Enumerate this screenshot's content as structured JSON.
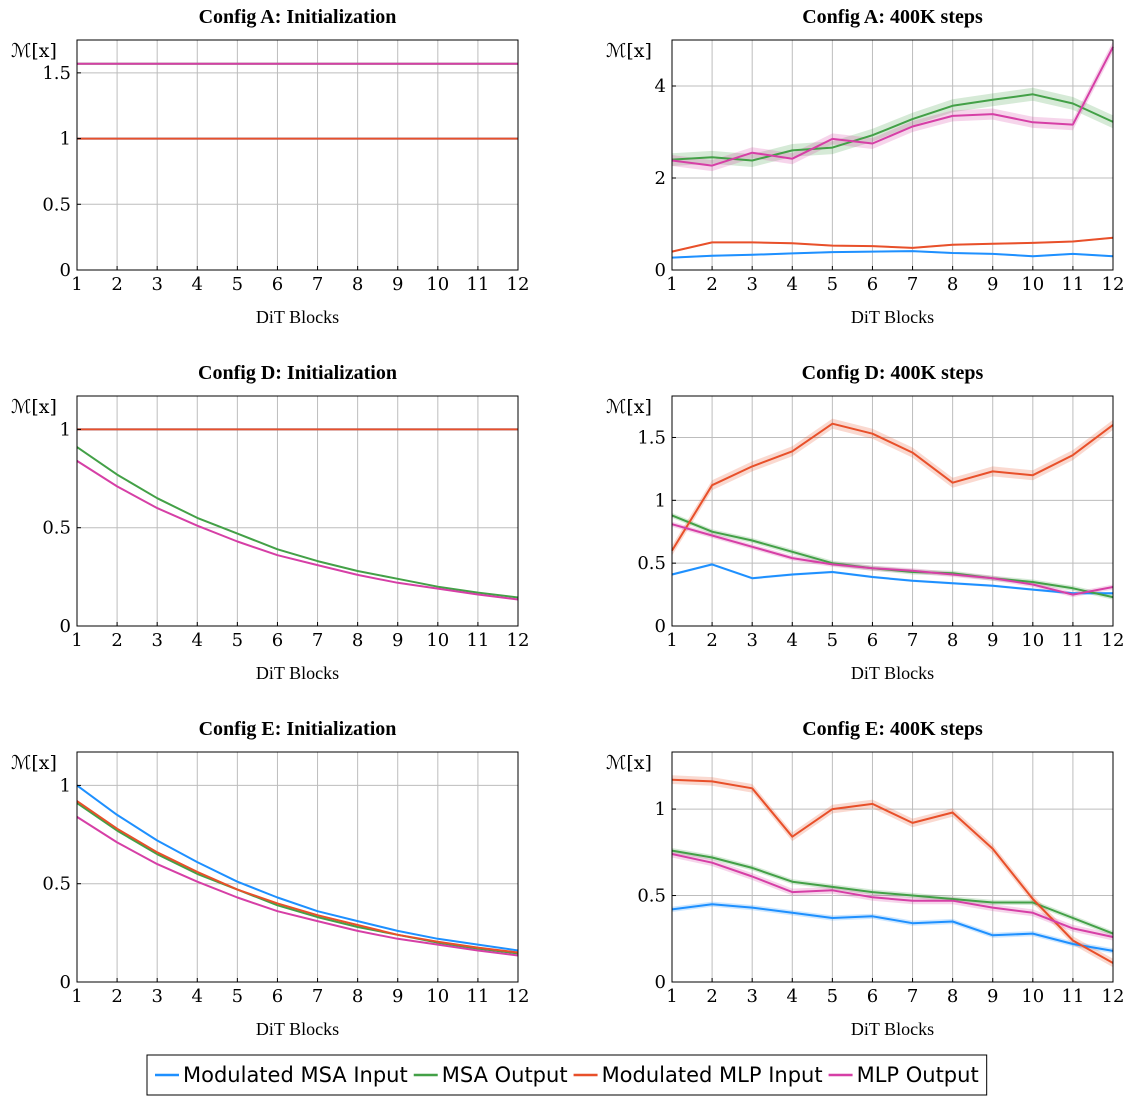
{
  "series_styles": [
    {
      "key": "msa_in",
      "color": "#1e90ff"
    },
    {
      "key": "msa_out",
      "color": "#43a047"
    },
    {
      "key": "mlp_in",
      "color": "#e8502a"
    },
    {
      "key": "mlp_out",
      "color": "#d63fa6"
    }
  ],
  "legend": [
    {
      "key": "msa_in",
      "label": "Modulated MSA Input"
    },
    {
      "key": "msa_out",
      "label": "MSA Output"
    },
    {
      "key": "mlp_in",
      "label": "Modulated MLP Input"
    },
    {
      "key": "mlp_out",
      "label": "MLP Output"
    }
  ],
  "chart_data": [
    {
      "type": "line",
      "title": "Config A: Initialization",
      "xlabel": "DiT Blocks",
      "ylabel": "ℳ[x]",
      "x": [
        1,
        2,
        3,
        4,
        5,
        6,
        7,
        8,
        9,
        10,
        11,
        12
      ],
      "ylim": [
        0,
        1.75
      ],
      "yticks": [
        0,
        0.5,
        1,
        1.5
      ],
      "yticklabels": [
        "0",
        "0.5",
        "1",
        "1.5"
      ],
      "series": [
        {
          "key": "msa_in",
          "values": [
            1,
            1,
            1,
            1,
            1,
            1,
            1,
            1,
            1,
            1,
            1,
            1
          ]
        },
        {
          "key": "msa_out",
          "values": [
            1.57,
            1.57,
            1.57,
            1.57,
            1.57,
            1.57,
            1.57,
            1.57,
            1.57,
            1.57,
            1.57,
            1.57
          ]
        },
        {
          "key": "mlp_in",
          "values": [
            1,
            1,
            1,
            1,
            1,
            1,
            1,
            1,
            1,
            1,
            1,
            1
          ]
        },
        {
          "key": "mlp_out",
          "values": [
            1.57,
            1.57,
            1.57,
            1.57,
            1.57,
            1.57,
            1.57,
            1.57,
            1.57,
            1.57,
            1.57,
            1.57
          ]
        }
      ]
    },
    {
      "type": "line",
      "title": "Config A: 400K steps",
      "xlabel": "DiT Blocks",
      "ylabel": "ℳ[x]",
      "x": [
        1,
        2,
        3,
        4,
        5,
        6,
        7,
        8,
        9,
        10,
        11,
        12
      ],
      "ylim": [
        0,
        5
      ],
      "yticks": [
        0,
        2,
        4
      ],
      "yticklabels": [
        "0",
        "2",
        "4"
      ],
      "series": [
        {
          "key": "msa_in",
          "values": [
            0.27,
            0.31,
            0.33,
            0.36,
            0.39,
            0.4,
            0.41,
            0.37,
            0.35,
            0.3,
            0.35,
            0.3
          ],
          "band": 0.02
        },
        {
          "key": "msa_out",
          "values": [
            2.4,
            2.45,
            2.38,
            2.6,
            2.66,
            2.93,
            3.28,
            3.57,
            3.7,
            3.82,
            3.62,
            3.22
          ],
          "band": 0.14
        },
        {
          "key": "mlp_in",
          "values": [
            0.4,
            0.6,
            0.6,
            0.58,
            0.53,
            0.52,
            0.48,
            0.55,
            0.57,
            0.59,
            0.62,
            0.7
          ],
          "band": 0.02
        },
        {
          "key": "mlp_out",
          "values": [
            2.38,
            2.27,
            2.55,
            2.42,
            2.85,
            2.75,
            3.12,
            3.35,
            3.39,
            3.21,
            3.16,
            4.85
          ],
          "band": 0.12
        }
      ]
    },
    {
      "type": "line",
      "title": "Config D: Initialization",
      "xlabel": "DiT Blocks",
      "ylabel": "ℳ[x]",
      "x": [
        1,
        2,
        3,
        4,
        5,
        6,
        7,
        8,
        9,
        10,
        11,
        12
      ],
      "ylim": [
        0,
        1.17
      ],
      "yticks": [
        0,
        0.5,
        1
      ],
      "yticklabels": [
        "0",
        "0.5",
        "1"
      ],
      "series": [
        {
          "key": "msa_in",
          "values": [
            1,
            1,
            1,
            1,
            1,
            1,
            1,
            1,
            1,
            1,
            1,
            1
          ]
        },
        {
          "key": "msa_out",
          "values": [
            0.91,
            0.77,
            0.65,
            0.55,
            0.47,
            0.39,
            0.33,
            0.28,
            0.24,
            0.2,
            0.17,
            0.145
          ]
        },
        {
          "key": "mlp_in",
          "values": [
            1,
            1,
            1,
            1,
            1,
            1,
            1,
            1,
            1,
            1,
            1,
            1
          ]
        },
        {
          "key": "mlp_out",
          "values": [
            0.84,
            0.71,
            0.6,
            0.51,
            0.43,
            0.36,
            0.31,
            0.26,
            0.22,
            0.19,
            0.16,
            0.135
          ]
        }
      ]
    },
    {
      "type": "line",
      "title": "Config D: 400K steps",
      "xlabel": "DiT Blocks",
      "ylabel": "ℳ[x]",
      "x": [
        1,
        2,
        3,
        4,
        5,
        6,
        7,
        8,
        9,
        10,
        11,
        12
      ],
      "ylim": [
        0,
        1.83
      ],
      "yticks": [
        0,
        0.5,
        1,
        1.5
      ],
      "yticklabels": [
        "0",
        "0.5",
        "1",
        "1.5"
      ],
      "series": [
        {
          "key": "msa_in",
          "values": [
            0.41,
            0.49,
            0.38,
            0.41,
            0.43,
            0.39,
            0.36,
            0.34,
            0.32,
            0.29,
            0.26,
            0.26
          ],
          "band": 0.01
        },
        {
          "key": "msa_out",
          "values": [
            0.88,
            0.75,
            0.68,
            0.59,
            0.5,
            0.46,
            0.43,
            0.42,
            0.38,
            0.35,
            0.3,
            0.23
          ],
          "band": 0.02
        },
        {
          "key": "mlp_in",
          "values": [
            0.6,
            1.12,
            1.27,
            1.39,
            1.61,
            1.53,
            1.38,
            1.14,
            1.23,
            1.2,
            1.36,
            1.6
          ],
          "band": 0.04
        },
        {
          "key": "mlp_out",
          "values": [
            0.81,
            0.72,
            0.63,
            0.54,
            0.49,
            0.46,
            0.44,
            0.41,
            0.38,
            0.33,
            0.25,
            0.31
          ],
          "band": 0.02
        }
      ]
    },
    {
      "type": "line",
      "title": "Config E: Initialization",
      "xlabel": "DiT Blocks",
      "ylabel": "ℳ[x]",
      "x": [
        1,
        2,
        3,
        4,
        5,
        6,
        7,
        8,
        9,
        10,
        11,
        12
      ],
      "ylim": [
        0,
        1.17
      ],
      "yticks": [
        0,
        0.5,
        1
      ],
      "yticklabels": [
        "0",
        "0.5",
        "1"
      ],
      "series": [
        {
          "key": "msa_in",
          "values": [
            1.0,
            0.85,
            0.72,
            0.61,
            0.51,
            0.43,
            0.36,
            0.31,
            0.26,
            0.22,
            0.19,
            0.16
          ]
        },
        {
          "key": "msa_out",
          "values": [
            0.91,
            0.77,
            0.65,
            0.55,
            0.47,
            0.39,
            0.33,
            0.28,
            0.24,
            0.2,
            0.17,
            0.145
          ]
        },
        {
          "key": "mlp_in",
          "values": [
            0.92,
            0.78,
            0.66,
            0.56,
            0.47,
            0.4,
            0.34,
            0.29,
            0.24,
            0.205,
            0.175,
            0.15
          ]
        },
        {
          "key": "mlp_out",
          "values": [
            0.84,
            0.71,
            0.6,
            0.51,
            0.43,
            0.36,
            0.31,
            0.26,
            0.22,
            0.19,
            0.16,
            0.135
          ]
        }
      ]
    },
    {
      "type": "line",
      "title": "Config E: 400K steps",
      "xlabel": "DiT Blocks",
      "ylabel": "ℳ[x]",
      "x": [
        1,
        2,
        3,
        4,
        5,
        6,
        7,
        8,
        9,
        10,
        11,
        12
      ],
      "ylim": [
        0,
        1.33
      ],
      "yticks": [
        0,
        0.5,
        1
      ],
      "yticklabels": [
        "0",
        "0.5",
        "1"
      ],
      "series": [
        {
          "key": "msa_in",
          "values": [
            0.42,
            0.45,
            0.43,
            0.4,
            0.37,
            0.38,
            0.34,
            0.35,
            0.27,
            0.28,
            0.22,
            0.18
          ],
          "band": 0.015
        },
        {
          "key": "msa_out",
          "values": [
            0.76,
            0.72,
            0.66,
            0.58,
            0.55,
            0.52,
            0.5,
            0.48,
            0.46,
            0.46,
            0.37,
            0.28
          ],
          "band": 0.015
        },
        {
          "key": "mlp_in",
          "values": [
            1.17,
            1.16,
            1.12,
            0.84,
            1.0,
            1.03,
            0.92,
            0.98,
            0.77,
            0.48,
            0.24,
            0.11
          ],
          "band": 0.025
        },
        {
          "key": "mlp_out",
          "values": [
            0.74,
            0.69,
            0.61,
            0.52,
            0.53,
            0.49,
            0.47,
            0.47,
            0.43,
            0.4,
            0.31,
            0.26
          ],
          "band": 0.02
        }
      ]
    }
  ]
}
